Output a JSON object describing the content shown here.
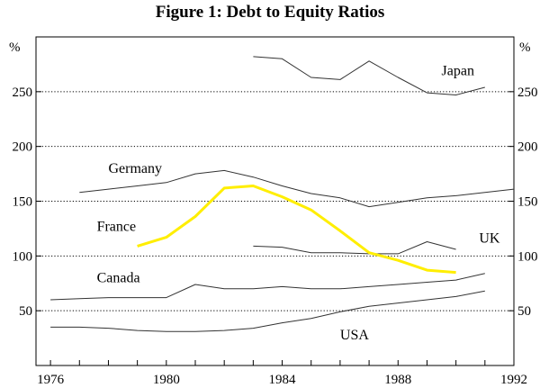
{
  "chart_data": {
    "type": "line",
    "title": "Figure 1: Debt to Equity Ratios",
    "ylabel_left": "%",
    "ylabel_right": "%",
    "xlim": [
      1975.5,
      1992
    ],
    "ylim": [
      0,
      300
    ],
    "x_ticks": [
      1976,
      1980,
      1984,
      1988,
      1992
    ],
    "y_ticks": [
      50,
      100,
      150,
      200,
      250
    ],
    "gridlines": "dotted horizontal",
    "highlight_color": "#ffee00",
    "line_color": "#333333",
    "series": [
      {
        "name": "Japan",
        "highlight": false,
        "x": [
          1983,
          1984,
          1985,
          1986,
          1987,
          1988,
          1989,
          1990,
          1991
        ],
        "values": [
          282,
          280,
          263,
          261,
          278,
          263,
          249,
          247,
          254
        ]
      },
      {
        "name": "Germany",
        "highlight": false,
        "x": [
          1977,
          1978,
          1979,
          1980,
          1981,
          1982,
          1983,
          1984,
          1985,
          1986,
          1987,
          1988,
          1989,
          1990,
          1991,
          1992
        ],
        "values": [
          158,
          161,
          164,
          167,
          175,
          178,
          172,
          164,
          157,
          153,
          145,
          149,
          153,
          155,
          158,
          161
        ]
      },
      {
        "name": "France",
        "highlight": true,
        "x": [
          1979,
          1980,
          1981,
          1982,
          1983,
          1984,
          1985,
          1986,
          1987,
          1988,
          1989,
          1990
        ],
        "values": [
          109,
          117,
          136,
          162,
          164,
          154,
          142,
          123,
          103,
          96,
          87,
          85
        ]
      },
      {
        "name": "UK",
        "highlight": false,
        "x": [
          1983,
          1984,
          1985,
          1986,
          1987,
          1988,
          1989,
          1990
        ],
        "values": [
          109,
          108,
          103,
          103,
          102,
          102,
          113,
          106
        ]
      },
      {
        "name": "Canada",
        "highlight": false,
        "x": [
          1976,
          1977,
          1978,
          1979,
          1980,
          1981,
          1982,
          1983,
          1984,
          1985,
          1986,
          1987,
          1988,
          1989,
          1990,
          1991
        ],
        "values": [
          60,
          61,
          62,
          62,
          62,
          74,
          70,
          70,
          72,
          70,
          70,
          72,
          74,
          76,
          78,
          84
        ]
      },
      {
        "name": "USA",
        "highlight": false,
        "x": [
          1976,
          1977,
          1978,
          1979,
          1980,
          1981,
          1982,
          1983,
          1984,
          1985,
          1986,
          1987,
          1988,
          1989,
          1990,
          1991
        ],
        "values": [
          35,
          35,
          34,
          32,
          31,
          31,
          32,
          34,
          39,
          43,
          49,
          54,
          57,
          60,
          63,
          68
        ]
      }
    ],
    "labels": [
      {
        "text": "Japan",
        "x": 1989.5,
        "y": 265
      },
      {
        "text": "Germany",
        "x": 1978,
        "y": 176
      },
      {
        "text": "France",
        "x": 1977.6,
        "y": 123
      },
      {
        "text": "UK",
        "x": 1990.8,
        "y": 112
      },
      {
        "text": "Canada",
        "x": 1977.6,
        "y": 76
      },
      {
        "text": "USA",
        "x": 1986,
        "y": 24
      }
    ]
  }
}
